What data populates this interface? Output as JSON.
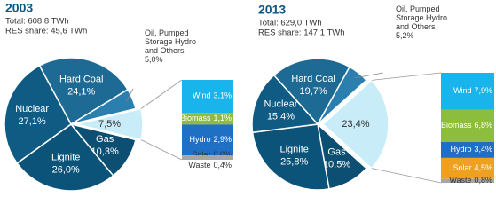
{
  "chart_data": [
    {
      "type": "pie",
      "title": "2003",
      "subtitle": [
        "Total: 608,8 TWh",
        "RES share: 45,6 TWh"
      ],
      "categories": [
        "Hard Coal",
        "Oil, Pumped Storage Hydro and Others",
        null,
        "Gas",
        "Lignite",
        "Nuclear"
      ],
      "values": [
        24.1,
        5.0,
        7.5,
        10.3,
        26.0,
        27.1
      ],
      "value_labels": [
        "24,1%",
        "5,0%",
        "7,5%",
        "10,3%",
        "26,0%",
        "27,1%"
      ],
      "colors": [
        "#1d6a94",
        "#2a7fae",
        "#c8ecf8",
        "#0d4f72",
        "#0c5379",
        "#0f5b84"
      ],
      "breakdown": {
        "categories": [
          "Wind",
          "Biomass",
          "Hydro",
          "Solar",
          "Waste"
        ],
        "values": [
          3.1,
          1.1,
          2.9,
          0.0,
          0.4
        ],
        "value_labels": [
          "3,1%",
          "1,1%",
          "2,9%",
          "0,0%",
          "0,4%"
        ],
        "colors": [
          "#1ab4ec",
          "#8dbd3c",
          "#1f6fc5",
          "#f0a020",
          "#a6a6a6"
        ]
      }
    },
    {
      "type": "pie",
      "title": "2013",
      "subtitle": [
        "Total: 629,0 TWh",
        "RES share: 147,1 TWh"
      ],
      "categories": [
        "Hard Coal",
        "Oil, Pumped Storage Hydro and Others",
        null,
        "Gas",
        "Lignite",
        "Nuclear"
      ],
      "values": [
        19.7,
        5.2,
        23.4,
        10.5,
        25.8,
        15.4
      ],
      "value_labels": [
        "19,7%",
        "5,2%",
        "23,4%",
        "10,5%",
        "25,8%",
        "15,4%"
      ],
      "colors": [
        "#1d6a94",
        "#2a7fae",
        "#c8ecf8",
        "#0d4f72",
        "#0c5379",
        "#0f5b84"
      ],
      "breakdown": {
        "categories": [
          "Wind",
          "Biomass",
          "Hydro",
          "Solar",
          "Waste"
        ],
        "values": [
          7.9,
          6.8,
          3.4,
          4.5,
          0.8
        ],
        "value_labels": [
          "7,9%",
          "6,8%",
          "3,4%",
          "4,5%",
          "0,8%"
        ],
        "colors": [
          "#1ab4ec",
          "#8dbd3c",
          "#1f6fc5",
          "#f0a020",
          "#a6a6a6"
        ]
      }
    }
  ]
}
